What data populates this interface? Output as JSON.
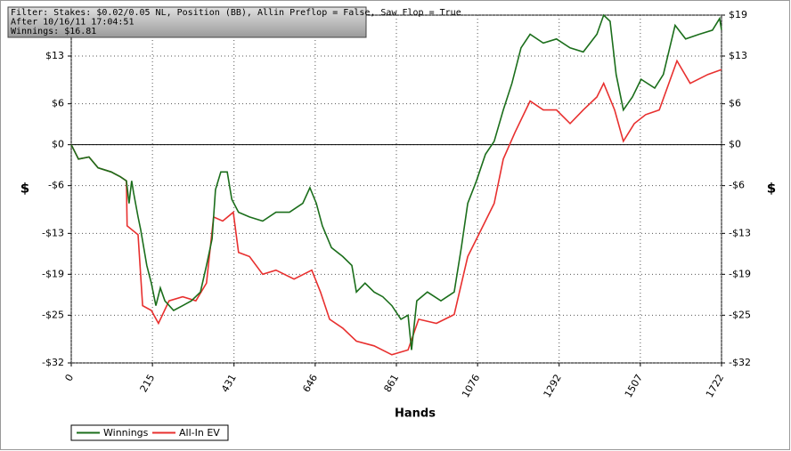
{
  "chart_data": {
    "type": "line",
    "annotations": [
      "Filter: Stakes: $0.02/0.05 NL, Position (BB), Allin Preflop = False, Saw Flop = True",
      "After 10/16/11 17:04:51",
      "Winnings: $16.81"
    ],
    "xlabel": "Hands",
    "ylabel": "$",
    "xlim": [
      0,
      1722
    ],
    "xticks": [
      0,
      215,
      431,
      646,
      861,
      1076,
      1292,
      1507,
      1722
    ],
    "ylim": [
      -32,
      19
    ],
    "yticks": [
      {
        "value": 19,
        "label": "$19"
      },
      {
        "value": 13,
        "label": "$13"
      },
      {
        "value": 6,
        "label": "$6"
      },
      {
        "value": 0,
        "label": "$0"
      },
      {
        "value": -6,
        "label": "-$6"
      },
      {
        "value": -13,
        "label": "-$13"
      },
      {
        "value": -19,
        "label": "-$19"
      },
      {
        "value": -25,
        "label": "-$25"
      },
      {
        "value": -32,
        "label": "-$32"
      }
    ],
    "grid": true,
    "legend": "bottom-left",
    "series": [
      {
        "name": "Winnings",
        "color": "#1b6e1b",
        "x": [
          0,
          19,
          47,
          71,
          106,
          130,
          146,
          153,
          160,
          165,
          177,
          184,
          200,
          212,
          224,
          236,
          248,
          271,
          295,
          318,
          342,
          358,
          373,
          382,
          396,
          413,
          425,
          443,
          472,
          507,
          542,
          578,
          613,
          632,
          649,
          665,
          689,
          719,
          743,
          755,
          778,
          802,
          825,
          849,
          873,
          892,
          901,
          915,
          943,
          979,
          1014,
          1033,
          1050,
          1073,
          1097,
          1120,
          1144,
          1167,
          1191,
          1215,
          1250,
          1285,
          1321,
          1356,
          1392,
          1410,
          1427,
          1443,
          1462,
          1486,
          1509,
          1545,
          1568,
          1599,
          1627,
          1663,
          1698,
          1717,
          1722
        ],
        "values": [
          0,
          -2.1,
          -1.8,
          -3.4,
          -4.0,
          -4.7,
          -5.3,
          -8.6,
          -5.3,
          -7.0,
          -10.6,
          -12.5,
          -17.7,
          -20.3,
          -23.6,
          -21.0,
          -22.9,
          -24.3,
          -23.6,
          -22.9,
          -21.6,
          -17.7,
          -13.8,
          -6.6,
          -4.0,
          -4.0,
          -8.0,
          -9.9,
          -10.6,
          -11.2,
          -9.9,
          -9.9,
          -8.6,
          -6.3,
          -8.6,
          -11.9,
          -15.1,
          -16.4,
          -17.7,
          -21.6,
          -20.3,
          -21.6,
          -22.3,
          -23.6,
          -25.6,
          -25.0,
          -30.1,
          -22.9,
          -21.6,
          -22.9,
          -21.6,
          -15.1,
          -8.6,
          -5.3,
          -1.4,
          0.5,
          5.1,
          9.0,
          14.2,
          16.2,
          14.9,
          15.5,
          14.2,
          13.6,
          16.2,
          19.0,
          18.1,
          10.3,
          5.1,
          7.0,
          9.6,
          8.3,
          10.3,
          17.5,
          15.5,
          16.2,
          16.8,
          18.5,
          16.81
        ]
      },
      {
        "name": "All-In EV",
        "color": "#e8302f",
        "x": [
          0,
          19,
          47,
          71,
          106,
          130,
          146,
          148,
          177,
          189,
          212,
          231,
          259,
          295,
          330,
          358,
          377,
          401,
          429,
          443,
          472,
          507,
          542,
          590,
          637,
          660,
          684,
          719,
          755,
          802,
          849,
          892,
          920,
          967,
          1014,
          1050,
          1085,
          1120,
          1144,
          1175,
          1215,
          1250,
          1285,
          1321,
          1356,
          1392,
          1410,
          1439,
          1462,
          1491,
          1521,
          1557,
          1604,
          1639,
          1686,
          1722
        ],
        "values": [
          0,
          -2.1,
          -1.8,
          -3.4,
          -4.0,
          -4.7,
          -5.3,
          -11.9,
          -13.2,
          -23.6,
          -24.3,
          -26.2,
          -22.9,
          -22.3,
          -22.9,
          -20.3,
          -10.6,
          -11.2,
          -9.9,
          -15.8,
          -16.4,
          -19.0,
          -18.4,
          -19.7,
          -18.4,
          -21.6,
          -25.6,
          -26.9,
          -28.8,
          -29.5,
          -30.8,
          -30.1,
          -25.6,
          -26.2,
          -24.9,
          -16.4,
          -12.5,
          -8.6,
          -2.1,
          1.8,
          6.4,
          5.1,
          5.1,
          3.1,
          5.1,
          7.0,
          9.0,
          5.1,
          0.5,
          3.1,
          4.4,
          5.1,
          12.3,
          9.0,
          10.3,
          11.0
        ]
      }
    ]
  }
}
